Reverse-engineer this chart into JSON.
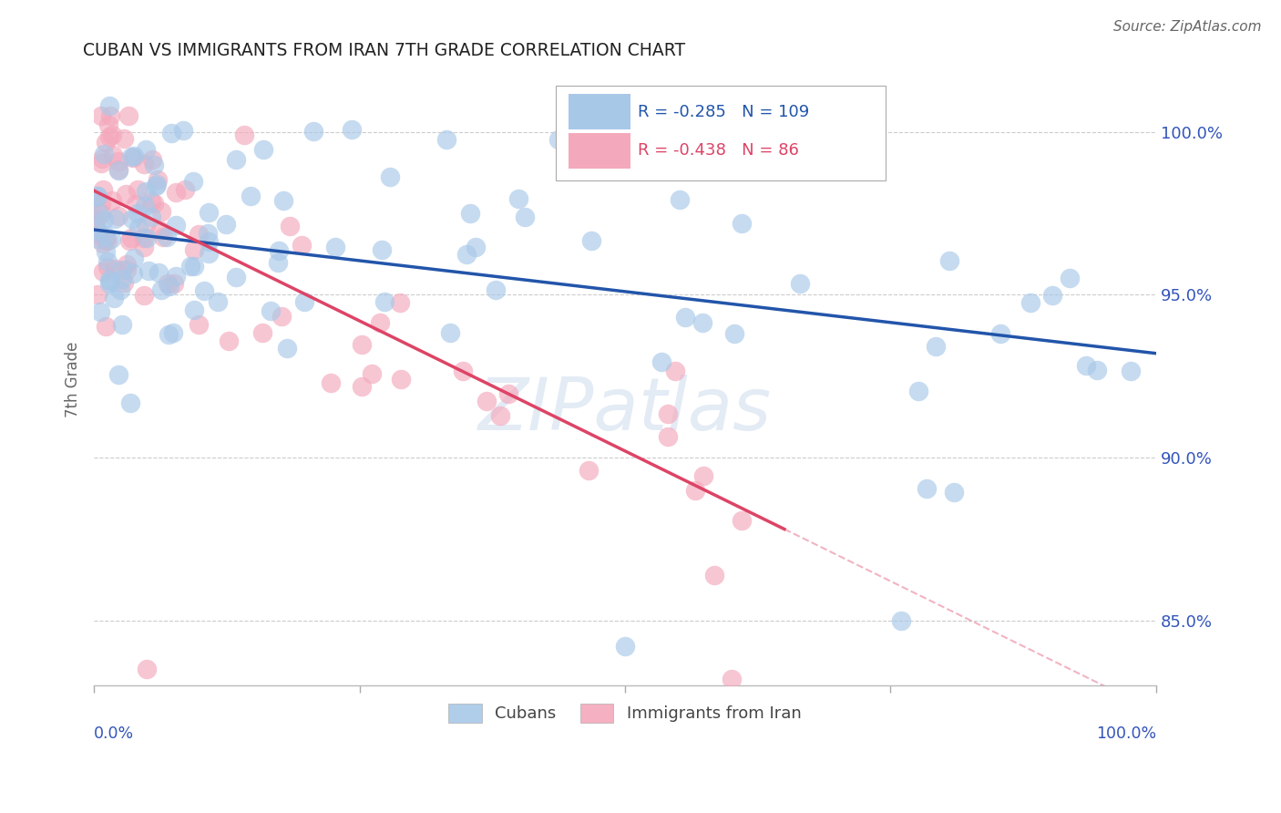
{
  "title": "CUBAN VS IMMIGRANTS FROM IRAN 7TH GRADE CORRELATION CHART",
  "source": "Source: ZipAtlas.com",
  "ylabel": "7th Grade",
  "xlim": [
    0.0,
    100.0
  ],
  "ylim": [
    83.0,
    101.8
  ],
  "yticks": [
    85.0,
    90.0,
    95.0,
    100.0
  ],
  "legend_label1": "Cubans",
  "legend_label2": "Immigrants from Iran",
  "R1": -0.285,
  "N1": 109,
  "R2": -0.438,
  "N2": 86,
  "blue_color": "#a8c8e8",
  "pink_color": "#f4a8bc",
  "blue_line_color": "#2255aa",
  "pink_line_color": "#dd4466",
  "axis_label_color": "#3355bb",
  "title_color": "#222222",
  "source_color": "#666666",
  "blue_line_start_y": 97.0,
  "blue_line_end_y": 93.2,
  "pink_line_start_y": 98.2,
  "pink_line_end_y": 87.8,
  "pink_data_x_max": 65.0
}
